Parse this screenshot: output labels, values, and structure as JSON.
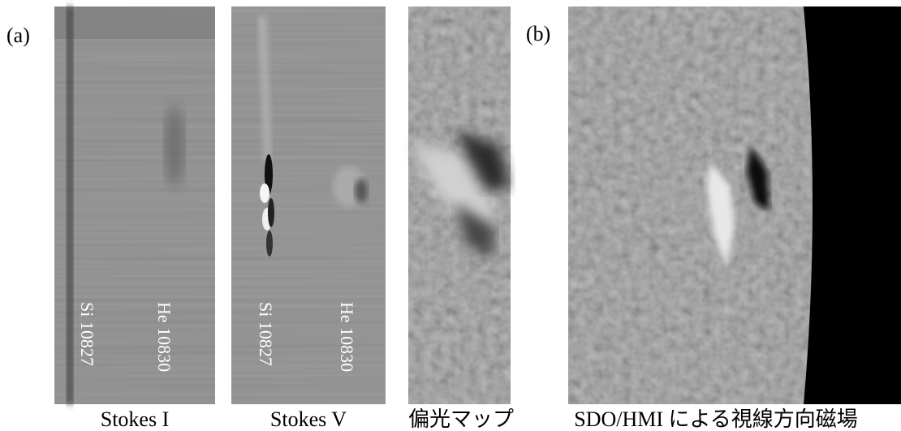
{
  "panel_labels": [
    "(a)",
    "(b)"
  ],
  "line_labels": [
    {
      "left": "Si 10827",
      "right": "He 10830"
    },
    {
      "left": "Si 10827",
      "right": "He 10830"
    }
  ],
  "captions": [
    "Stokes I",
    "Stokes V",
    "偏光マップ",
    "SDO/HMI による視線方向磁場"
  ]
}
